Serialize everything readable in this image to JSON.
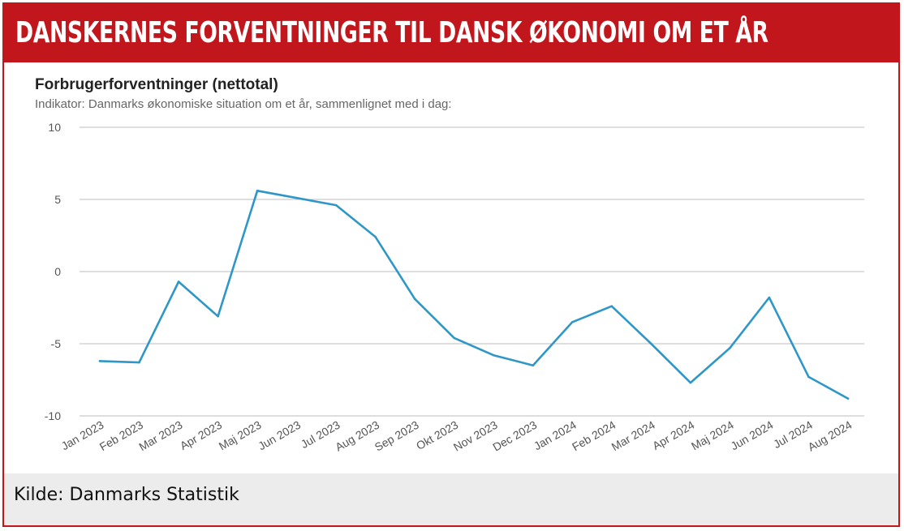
{
  "header": {
    "title": "DANSKERNES FORVENTNINGER TIL DANSK ØKONOMI OM ET ÅR"
  },
  "footer": {
    "source": "Kilde: Danmarks Statistik"
  },
  "colors": {
    "banner": "#c0161c",
    "line": "#2f97c8",
    "grid": "#bdbdbd"
  },
  "chart_data": {
    "type": "line",
    "title": "Forbrugerforventninger (nettotal)",
    "subtitle": "Indikator: Danmarks økonomiske situation om et år, sammenlignet med i dag:",
    "categories": [
      "Jan 2023",
      "Feb 2023",
      "Mar 2023",
      "Apr 2023",
      "Maj 2023",
      "Jun 2023",
      "Jul 2023",
      "Aug 2023",
      "Sep 2023",
      "Okt 2023",
      "Nov 2023",
      "Dec 2023",
      "Jan 2024",
      "Feb 2024",
      "Mar 2024",
      "Apr 2024",
      "Maj 2024",
      "Jun 2024",
      "Jul 2024",
      "Aug 2024"
    ],
    "series": [
      {
        "values": [
          -6.2,
          -6.3,
          -0.7,
          -3.1,
          5.6,
          5.1,
          4.6,
          2.4,
          -1.9,
          -4.6,
          -5.8,
          -6.5,
          -3.5,
          -2.4,
          -5.0,
          -7.7,
          -5.3,
          -1.8,
          -7.3,
          -8.8
        ]
      }
    ],
    "ylim": [
      -10,
      10
    ],
    "yticks": [
      10,
      5,
      0,
      -5,
      -10
    ],
    "ytick_labels": [
      "10",
      "5",
      "0",
      "-5",
      "-10"
    ],
    "grid": true
  }
}
